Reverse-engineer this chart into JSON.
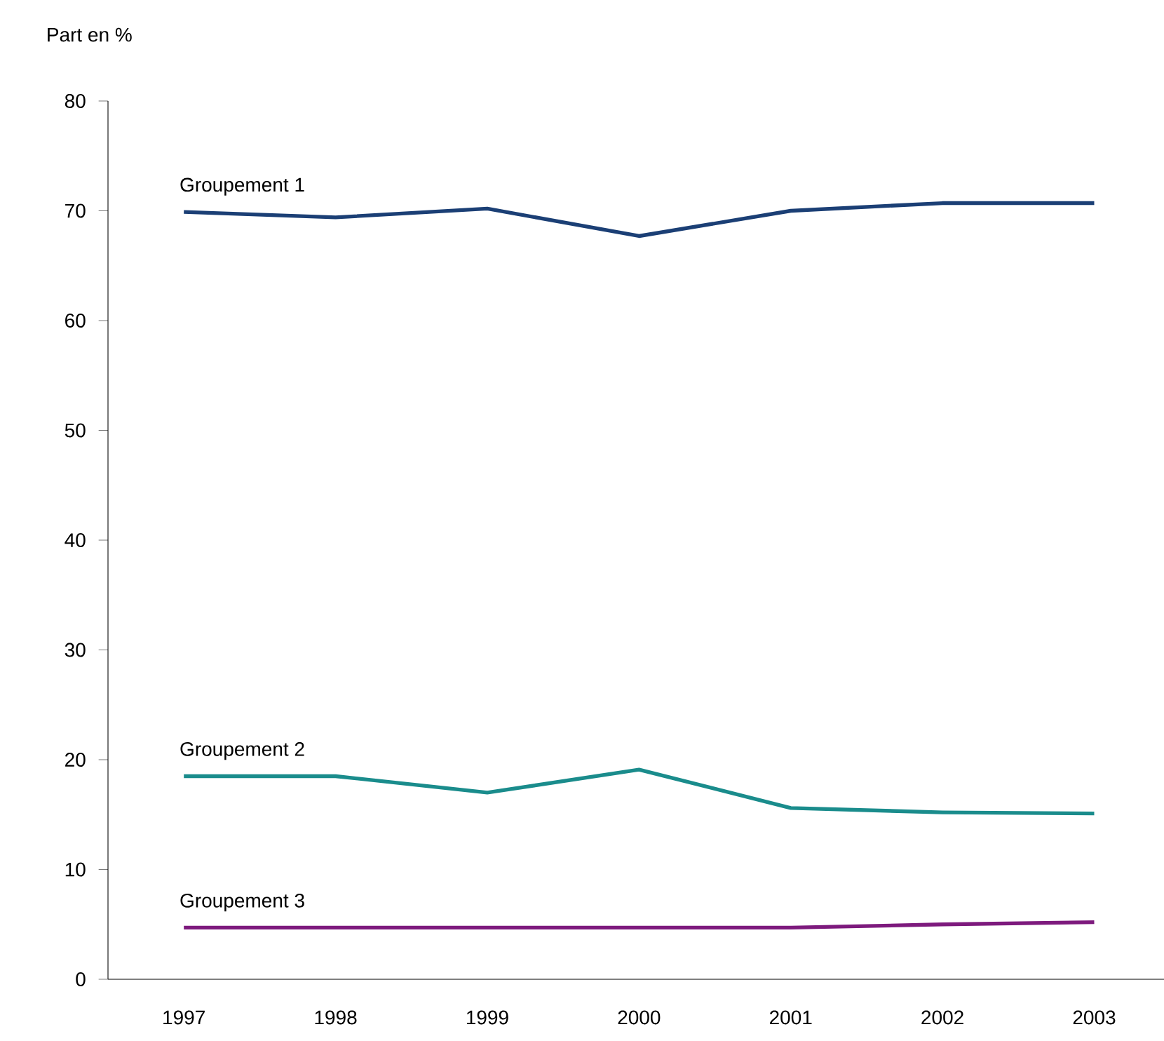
{
  "chart_data": {
    "type": "line",
    "ylabel": "Part en %",
    "categories": [
      "1997",
      "1998",
      "1999",
      "2000",
      "2001",
      "2002",
      "2003"
    ],
    "series": [
      {
        "name": "Groupement 1",
        "color": "#1b3f75",
        "values": [
          69.9,
          69.4,
          70.2,
          67.7,
          70.0,
          70.7,
          70.7
        ]
      },
      {
        "name": "Groupement 2",
        "color": "#1a8c8c",
        "values": [
          18.5,
          18.5,
          17.0,
          19.1,
          15.6,
          15.2,
          15.1
        ]
      },
      {
        "name": "Groupement 3",
        "color": "#7d1a7d",
        "values": [
          4.7,
          4.7,
          4.7,
          4.7,
          4.7,
          5.0,
          5.2
        ]
      }
    ],
    "ylim": [
      0,
      80
    ],
    "yticks": [
      0,
      10,
      20,
      30,
      40,
      50,
      60,
      70,
      80
    ],
    "grid": false,
    "legend": false,
    "marker": "none",
    "line_style": "solid"
  }
}
